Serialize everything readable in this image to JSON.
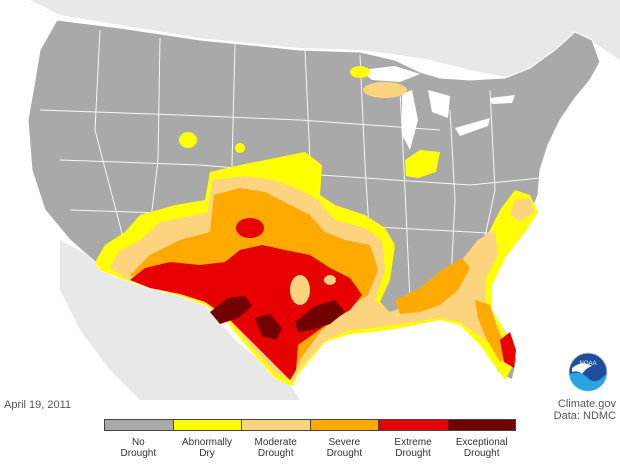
{
  "map": {
    "date": "April 19, 2011",
    "credit_line1": "Climate.gov",
    "credit_line2": "Data: NDMC",
    "logo_text": "NOAA",
    "colors": {
      "ocean": "#ffffff",
      "land_outside": "#e8e8e8",
      "no_drought": "#a9a9a9",
      "border": "#ffffff",
      "lake": "#ffffff"
    }
  },
  "legend": {
    "categories": [
      {
        "line1": "No",
        "line2": "Drought",
        "color": "#a9a9a9"
      },
      {
        "line1": "Abnormally",
        "line2": "Dry",
        "color": "#ffff00"
      },
      {
        "line1": "Moderate",
        "line2": "Drought",
        "color": "#fcd37f"
      },
      {
        "line1": "Severe",
        "line2": "Drought",
        "color": "#ffaa00"
      },
      {
        "line1": "Extreme",
        "line2": "Drought",
        "color": "#e60000"
      },
      {
        "line1": "Exceptional",
        "line2": "Drought",
        "color": "#730000"
      }
    ]
  }
}
